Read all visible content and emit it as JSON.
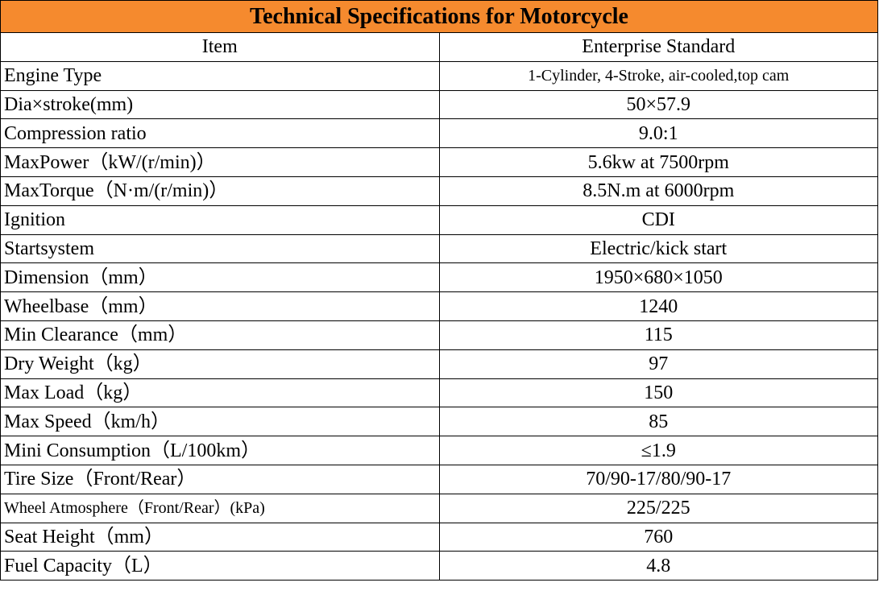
{
  "title": "Technical Specifications for Motorcycle",
  "header": [
    "Item",
    "Enterprise Standard"
  ],
  "rows": [
    [
      "Engine Type",
      "1-Cylinder, 4-Stroke, air-cooled,top cam"
    ],
    [
      "Dia×stroke(mm)",
      "50×57.9"
    ],
    [
      "Compression ratio",
      "9.0:1"
    ],
    [
      "MaxPower（kW/(r/min)）",
      "5.6kw at 7500rpm"
    ],
    [
      "MaxTorque（N·m/(r/min)）",
      "8.5N.m at 6000rpm"
    ],
    [
      "Ignition",
      "CDI"
    ],
    [
      "Startsystem",
      "Electric/kick start"
    ],
    [
      "Dimension（mm）",
      "1950×680×1050"
    ],
    [
      "Wheelbase（mm）",
      "1240"
    ],
    [
      "Min Clearance（mm）",
      "115"
    ],
    [
      "Dry Weight（kg）",
      "97"
    ],
    [
      "Max Load（kg）",
      "150"
    ],
    [
      "Max Speed（km/h）",
      "85"
    ],
    [
      "Mini Consumption（L/100km）",
      "≤1.9"
    ],
    [
      "Tire Size（Front/Rear）",
      "70/90-17/80/90-17"
    ],
    [
      "Wheel Atmosphere（Front/Rear）(kPa)",
      "225/225"
    ],
    [
      "Seat Height（mm）",
      "760"
    ],
    [
      "Fuel Capacity（L）",
      "4.8"
    ]
  ]
}
